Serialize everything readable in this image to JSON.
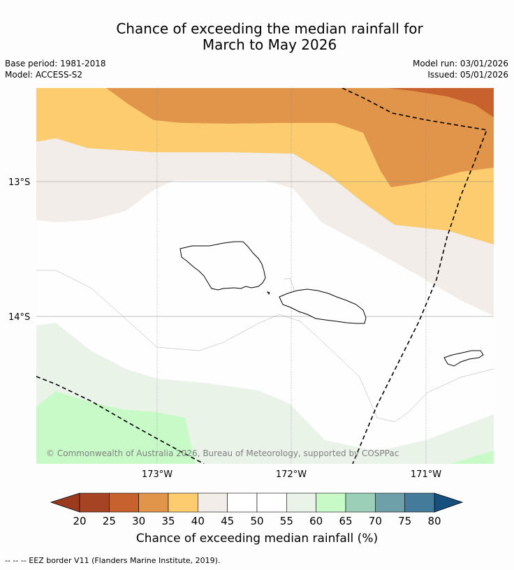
{
  "header": {
    "title_line1": "Chance of exceeding the median rainfall for",
    "title_line2": "March to May 2026",
    "base_period": "Base period: 1981-2018",
    "model": "Model: ACCESS-S2",
    "model_run": "Model run: 03/01/2026",
    "issued": "Issued: 05/01/2026"
  },
  "map": {
    "lat_labels": [
      "13°S",
      "14°S"
    ],
    "lon_labels": [
      "173°W",
      "172°W",
      "171°W"
    ],
    "copyright": "© Commonwealth of Australia 2026, Bureau of Meteorology, supported by COSPPac",
    "colors": {
      "c25_30": "#c7622f",
      "c30_35": "#e0954a",
      "c35_40": "#fccc6e",
      "c40_45": "#f2ede8",
      "c45_55": "#fdfefd",
      "c55_60": "#e9f3e8",
      "c60_65": "#c8fac8",
      "grid": "#888888",
      "coast": "#000000"
    }
  },
  "colorbar": {
    "ticks": [
      "20",
      "25",
      "30",
      "35",
      "40",
      "45",
      "50",
      "55",
      "60",
      "65",
      "70",
      "75",
      "80"
    ],
    "colors": [
      "#a54322",
      "#c7622f",
      "#e0954a",
      "#fccc6e",
      "#f2ede8",
      "#ffffff",
      "#ffffff",
      "#e9f3e8",
      "#c8fac8",
      "#9ccfb8",
      "#6da0a8",
      "#447b9b"
    ],
    "under_color": "#9c3a1e",
    "over_color": "#17507f",
    "label": "Chance of exceeding median rainfall (%)"
  },
  "footer": {
    "legend": "-- -- -- EEZ border V11 (Flanders Marine Institute, 2019)."
  }
}
